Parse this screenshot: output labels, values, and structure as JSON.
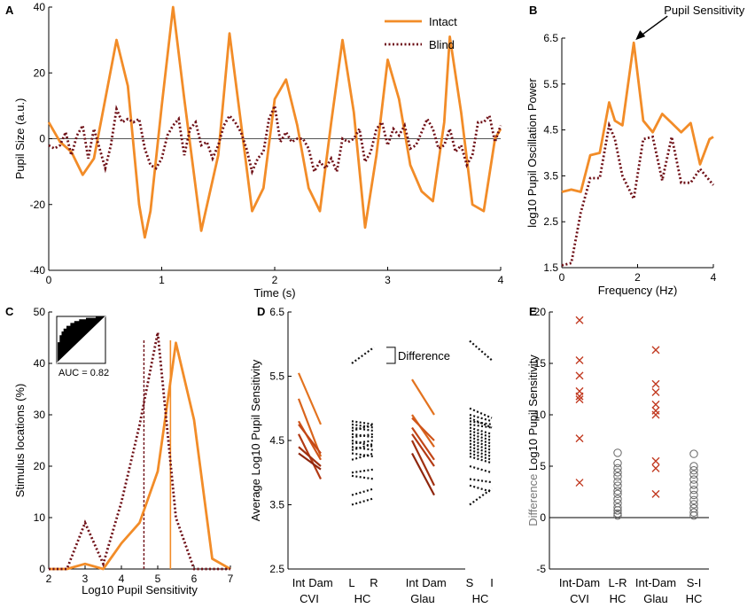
{
  "colors": {
    "intact": "#F28C28",
    "blind": "#6E0F16",
    "axis": "#000000",
    "dots": "#111111",
    "cross": "#C23B22",
    "circle": "#666666",
    "grey_text": "#777777"
  },
  "chart_data": [
    {
      "panel": "A",
      "type": "line",
      "xlabel": "Time (s)",
      "ylabel": "Pupil Size (a.u.)",
      "xlim": [
        0,
        4
      ],
      "ylim": [
        -40,
        40
      ],
      "xticks": [
        "0",
        "1",
        "2",
        "3",
        "4"
      ],
      "yticks": [
        "-40",
        "-20",
        "0",
        "20",
        "40"
      ],
      "legend": {
        "position": "top-right",
        "entries": [
          "Intact",
          "Blind"
        ]
      },
      "series": [
        {
          "name": "Intact",
          "x": [
            0,
            0.05,
            0.1,
            0.2,
            0.3,
            0.4,
            0.5,
            0.6,
            0.7,
            0.8,
            0.85,
            0.9,
            1.0,
            1.1,
            1.2,
            1.35,
            1.5,
            1.6,
            1.7,
            1.8,
            1.9,
            2.0,
            2.1,
            2.2,
            2.3,
            2.4,
            2.5,
            2.6,
            2.7,
            2.8,
            2.9,
            3.0,
            3.1,
            3.2,
            3.3,
            3.4,
            3.5,
            3.55,
            3.65,
            3.75,
            3.85,
            3.95,
            4.0
          ],
          "y": [
            5,
            2,
            -1,
            -4,
            -11,
            -6,
            12,
            30,
            16,
            -20,
            -30,
            -22,
            10,
            40,
            12,
            -28,
            -5,
            32,
            5,
            -22,
            -15,
            12,
            18,
            4,
            -15,
            -22,
            5,
            30,
            8,
            -27,
            -5,
            24,
            12,
            -8,
            -16,
            -19,
            5,
            31,
            8,
            -20,
            -22,
            0,
            3
          ]
        },
        {
          "name": "Blind",
          "x": [
            0,
            0.05,
            0.1,
            0.15,
            0.2,
            0.25,
            0.3,
            0.35,
            0.4,
            0.45,
            0.5,
            0.55,
            0.6,
            0.65,
            0.7,
            0.75,
            0.8,
            0.85,
            0.9,
            0.95,
            1.0,
            1.05,
            1.1,
            1.15,
            1.2,
            1.25,
            1.3,
            1.35,
            1.4,
            1.45,
            1.5,
            1.55,
            1.6,
            1.65,
            1.7,
            1.75,
            1.8,
            1.85,
            1.9,
            1.95,
            2.0,
            2.05,
            2.1,
            2.15,
            2.2,
            2.25,
            2.3,
            2.35,
            2.4,
            2.45,
            2.5,
            2.55,
            2.6,
            2.65,
            2.7,
            2.75,
            2.8,
            2.85,
            2.9,
            2.95,
            3.0,
            3.05,
            3.1,
            3.15,
            3.2,
            3.25,
            3.3,
            3.35,
            3.4,
            3.45,
            3.5,
            3.55,
            3.6,
            3.65,
            3.7,
            3.75,
            3.8,
            3.85,
            3.9,
            3.95,
            4.0
          ],
          "y": [
            -2,
            -3,
            -2,
            2,
            -5,
            1,
            4,
            -6,
            3,
            -3,
            -9,
            -2,
            9,
            5,
            6,
            5,
            6,
            -3,
            -8,
            -9,
            -6,
            1,
            4,
            6,
            -5,
            3,
            5,
            -2,
            -1,
            -6,
            -2,
            4,
            7,
            5,
            2,
            -3,
            -10,
            -6,
            -4,
            6,
            10,
            -1,
            2,
            -1,
            0,
            0,
            -3,
            -10,
            -7,
            -9,
            -6,
            -10,
            0,
            -1,
            0,
            3,
            -7,
            -4,
            3,
            5,
            -2,
            3,
            1,
            4,
            -3,
            -2,
            2,
            6,
            3,
            -3,
            -2,
            3,
            -4,
            -2,
            -8,
            -5,
            5,
            5,
            7,
            -1,
            4
          ]
        }
      ]
    },
    {
      "panel": "B",
      "type": "line",
      "xlabel": "Frequency (Hz)",
      "ylabel": "log10 Pupil Oscillation Power",
      "xlim": [
        0,
        4
      ],
      "ylim": [
        1.5,
        6.5
      ],
      "xticks": [
        "0",
        "2",
        "4"
      ],
      "yticks": [
        "1.5",
        "2.5",
        "3.5",
        "4.5",
        "5.5",
        "6.5"
      ],
      "annotation": "Pupil Sensitivity",
      "series": [
        {
          "name": "Intact",
          "x": [
            0,
            0.25,
            0.5,
            0.75,
            1.0,
            1.25,
            1.4,
            1.6,
            1.9,
            2.15,
            2.4,
            2.65,
            2.9,
            3.15,
            3.4,
            3.65,
            3.9,
            4.0
          ],
          "y": [
            3.15,
            3.2,
            3.15,
            3.95,
            4.0,
            5.1,
            4.7,
            4.6,
            6.4,
            4.7,
            4.45,
            4.85,
            4.65,
            4.45,
            4.65,
            3.75,
            4.3,
            4.35
          ]
        },
        {
          "name": "Blind",
          "x": [
            0,
            0.25,
            0.5,
            0.75,
            1.0,
            1.25,
            1.4,
            1.6,
            1.9,
            2.15,
            2.4,
            2.65,
            2.9,
            3.15,
            3.4,
            3.65,
            3.9,
            4.0
          ],
          "y": [
            1.55,
            1.6,
            2.7,
            3.45,
            3.45,
            4.6,
            4.3,
            3.5,
            3.0,
            4.3,
            4.35,
            3.4,
            4.35,
            3.35,
            3.35,
            3.65,
            3.4,
            3.3
          ]
        }
      ]
    },
    {
      "panel": "C",
      "type": "line",
      "xlabel": "Log10 Pupil Sensitivity",
      "ylabel": "Stimulus locations (%)",
      "xlim": [
        2,
        7
      ],
      "ylim": [
        0,
        50
      ],
      "xticks": [
        "2",
        "3",
        "4",
        "5",
        "6",
        "7"
      ],
      "yticks": [
        "0",
        "10",
        "20",
        "30",
        "40",
        "50"
      ],
      "inset": {
        "label": "AUC = 0.82",
        "auc": 0.82
      },
      "medians": {
        "Intact": 5.35,
        "Blind": 4.62
      },
      "series": [
        {
          "name": "Intact",
          "x": [
            2,
            2.5,
            3,
            3.5,
            4,
            4.5,
            5,
            5.5,
            6,
            6.5,
            7
          ],
          "y": [
            0,
            0,
            1,
            0,
            5,
            9,
            19,
            44,
            29,
            2,
            0
          ]
        },
        {
          "name": "Blind",
          "x": [
            2,
            2.5,
            3,
            3.5,
            4,
            4.5,
            5,
            5.5,
            6,
            6.5,
            7
          ],
          "y": [
            0,
            0,
            9,
            1,
            13,
            28,
            46,
            10,
            0,
            0,
            0
          ]
        }
      ]
    },
    {
      "panel": "D",
      "type": "paired-lines",
      "ylabel": "Average Log10 Pupil Sensitivity",
      "ylim": [
        2.5,
        6.5
      ],
      "yticks": [
        "2.5",
        "3.5",
        "4.5",
        "5.5",
        "6.5"
      ],
      "xlabels": [
        "Int",
        "Dam",
        "L",
        "R",
        "Int",
        "Dam",
        "S",
        "I"
      ],
      "group_labels": [
        "CVI",
        "HC",
        "Glau",
        "HC"
      ],
      "legend_label": "Difference",
      "groups": [
        {
          "name": "CVI",
          "style": "solid",
          "pairs": [
            [
              5.55,
              4.75
            ],
            [
              5.15,
              4.25
            ],
            [
              4.8,
              4.2
            ],
            [
              4.75,
              4.3
            ],
            [
              4.6,
              3.9
            ],
            [
              4.4,
              4.1
            ],
            [
              4.3,
              4.05
            ]
          ]
        },
        {
          "name": "HC",
          "style": "dotted",
          "pairs": [
            [
              5.7,
              5.95
            ],
            [
              4.8,
              4.75
            ],
            [
              4.75,
              4.7
            ],
            [
              4.7,
              4.65
            ],
            [
              4.65,
              4.75
            ],
            [
              4.6,
              4.55
            ],
            [
              4.55,
              4.6
            ],
            [
              4.5,
              4.4
            ],
            [
              4.45,
              4.5
            ],
            [
              4.4,
              4.35
            ],
            [
              4.35,
              4.45
            ],
            [
              4.3,
              4.25
            ],
            [
              4.2,
              4.3
            ],
            [
              4.0,
              4.05
            ],
            [
              3.95,
              3.9
            ],
            [
              3.65,
              3.75
            ],
            [
              3.5,
              3.6
            ]
          ]
        },
        {
          "name": "Glau",
          "style": "solid",
          "pairs": [
            [
              5.45,
              4.9
            ],
            [
              4.9,
              4.4
            ],
            [
              4.85,
              4.5
            ],
            [
              4.7,
              4.2
            ],
            [
              4.6,
              4.1
            ],
            [
              4.5,
              3.8
            ],
            [
              4.3,
              3.65
            ]
          ]
        },
        {
          "name": "HC",
          "style": "dotted",
          "pairs": [
            [
              6.05,
              5.75
            ],
            [
              5.0,
              4.85
            ],
            [
              4.9,
              4.8
            ],
            [
              4.85,
              4.7
            ],
            [
              4.8,
              4.75
            ],
            [
              4.75,
              4.7
            ],
            [
              4.7,
              4.6
            ],
            [
              4.65,
              4.55
            ],
            [
              4.6,
              4.5
            ],
            [
              4.55,
              4.45
            ],
            [
              4.5,
              4.4
            ],
            [
              4.45,
              4.35
            ],
            [
              4.4,
              4.3
            ],
            [
              4.35,
              4.25
            ],
            [
              4.3,
              4.2
            ],
            [
              4.25,
              4.15
            ],
            [
              4.1,
              4.0
            ],
            [
              3.9,
              3.85
            ],
            [
              3.8,
              3.7
            ],
            [
              3.5,
              3.75
            ]
          ]
        }
      ]
    },
    {
      "panel": "E",
      "type": "scatter",
      "ylabel": "Difference Log10 Pupil Sensitivity",
      "ylim": [
        -5,
        20
      ],
      "yticks": [
        "-5",
        "0",
        "5",
        "10",
        "15",
        "20"
      ],
      "groups": [
        {
          "label": "Int-Dam",
          "sublabel": "CVI",
          "marker": "x",
          "values": [
            19.2,
            15.3,
            13.8,
            12.3,
            11.8,
            11.5,
            7.7,
            3.4
          ]
        },
        {
          "label": "L-R",
          "sublabel": "HC",
          "marker": "o",
          "values": [
            6.3,
            5.3,
            4.8,
            4.4,
            4.0,
            3.5,
            3.1,
            2.6,
            2.3,
            1.8,
            1.4,
            1.0,
            0.7,
            0.4,
            0.2
          ]
        },
        {
          "label": "Int-Dam",
          "sublabel": "Glau",
          "marker": "x",
          "values": [
            16.3,
            13.0,
            12.2,
            11.0,
            10.4,
            10.0,
            5.5,
            4.8,
            2.3
          ]
        },
        {
          "label": "S-I",
          "sublabel": "HC",
          "marker": "o",
          "values": [
            6.2,
            5.0,
            4.6,
            4.2,
            3.7,
            3.2,
            2.7,
            2.2,
            1.7,
            1.3,
            0.9,
            0.5,
            0.2
          ]
        }
      ]
    }
  ]
}
